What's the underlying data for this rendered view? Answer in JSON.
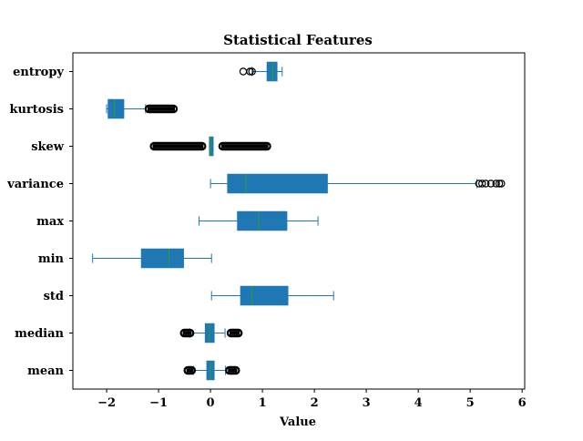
{
  "chart_data": {
    "type": "boxplot",
    "orientation": "horizontal",
    "title": "Statistical Features",
    "xlabel": "Value",
    "ylabel": "",
    "xlim": [
      -2.65,
      6.05
    ],
    "xticks": [
      -2,
      -1,
      0,
      1,
      2,
      3,
      4,
      5,
      6
    ],
    "xtick_labels": [
      "−2",
      "−1",
      "0",
      "1",
      "2",
      "3",
      "4",
      "5",
      "6"
    ],
    "grid": false,
    "colors": {
      "box": "#1f77b4",
      "median": "#2ca02c",
      "whisker": "#1f77b4",
      "flier": "#000000"
    },
    "categories": [
      "entropy",
      "kurtosis",
      "skew",
      "variance",
      "max",
      "min",
      "std",
      "median",
      "mean"
    ],
    "boxes": [
      {
        "name": "entropy",
        "whislo": 0.8,
        "q1": 1.09,
        "med": 1.2,
        "q3": 1.28,
        "whishi": 1.38,
        "fliers": [
          0.63,
          0.76,
          0.8
        ],
        "flier_ranges": []
      },
      {
        "name": "kurtosis",
        "whislo": -2.0,
        "q1": -1.97,
        "med": -1.85,
        "q3": -1.67,
        "whishi": -1.25,
        "fliers": [],
        "flier_ranges": [
          [
            -1.25,
            -0.65
          ]
        ]
      },
      {
        "name": "skew",
        "whislo": -0.02,
        "q1": -0.02,
        "med": 0.0,
        "q3": 0.05,
        "whishi": 0.05,
        "fliers": [],
        "flier_ranges": [
          [
            -1.15,
            -0.1
          ],
          [
            0.17,
            1.15
          ]
        ]
      },
      {
        "name": "variance",
        "whislo": 0.0,
        "q1": 0.33,
        "med": 0.68,
        "q3": 2.25,
        "whishi": 5.13,
        "fliers": [
          5.17,
          5.23,
          5.3,
          5.4,
          5.5,
          5.56,
          5.6
        ],
        "flier_ranges": []
      },
      {
        "name": "max",
        "whislo": -0.22,
        "q1": 0.52,
        "med": 0.93,
        "q3": 1.47,
        "whishi": 2.07,
        "fliers": [],
        "flier_ranges": []
      },
      {
        "name": "min",
        "whislo": -2.27,
        "q1": -1.33,
        "med": -0.8,
        "q3": -0.52,
        "whishi": 0.02,
        "fliers": [],
        "flier_ranges": []
      },
      {
        "name": "std",
        "whislo": 0.02,
        "q1": 0.58,
        "med": 0.8,
        "q3": 1.49,
        "whishi": 2.37,
        "fliers": [],
        "flier_ranges": []
      },
      {
        "name": "median",
        "whislo": -0.4,
        "q1": -0.1,
        "med": -0.02,
        "q3": 0.07,
        "whishi": 0.28,
        "fliers": [],
        "flier_ranges": [
          [
            -0.57,
            -0.33
          ],
          [
            0.33,
            0.6
          ]
        ]
      },
      {
        "name": "mean",
        "whislo": -0.33,
        "q1": -0.07,
        "med": 0.0,
        "q3": 0.07,
        "whishi": 0.29,
        "fliers": [],
        "flier_ranges": [
          [
            -0.5,
            -0.3
          ],
          [
            0.3,
            0.55
          ]
        ]
      }
    ]
  }
}
